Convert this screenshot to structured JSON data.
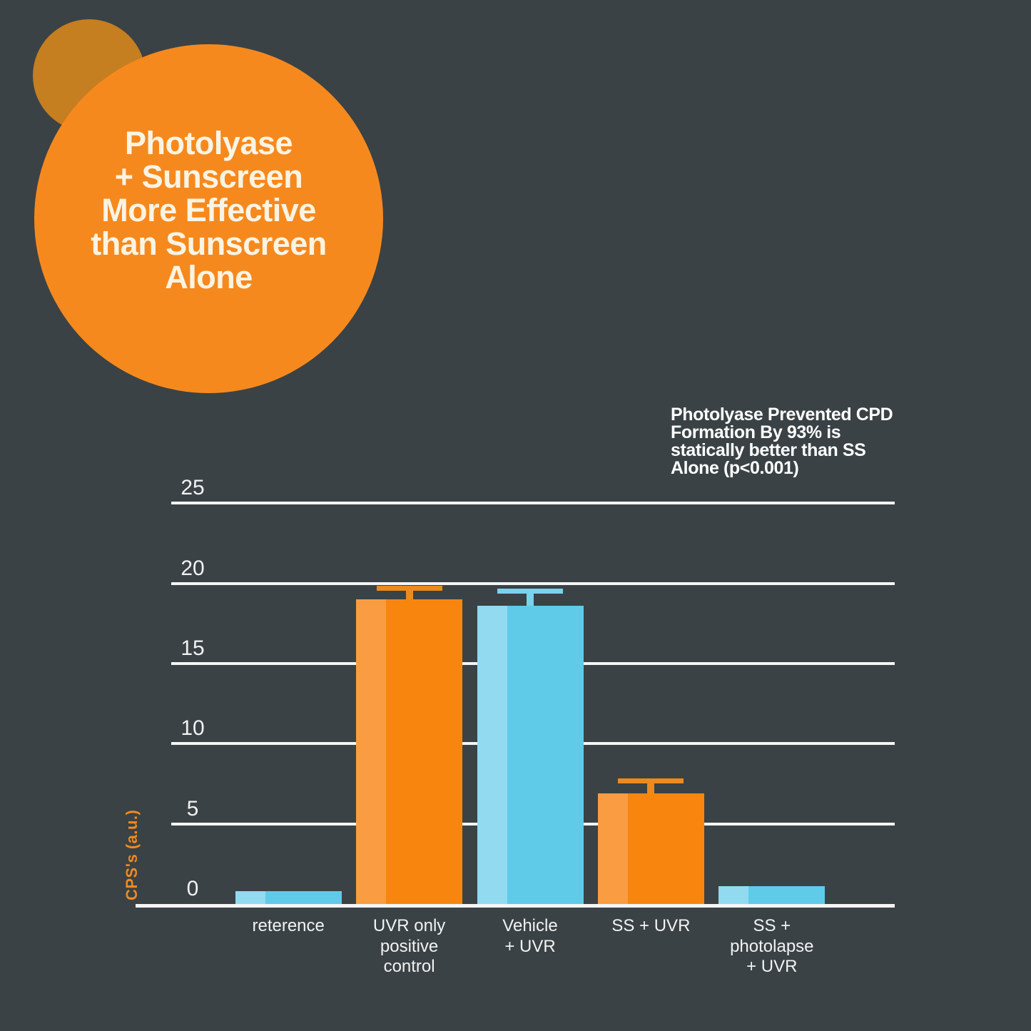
{
  "title_circle": {
    "text": "Photolyase\n+ Sunscreen\nMore Effective\nthan Sunscreen\nAlone"
  },
  "annotation": {
    "text": "Photolyase Prevented CPD\nFormation By 93% is\nstatically better than SS\nAlone (p<0.001)"
  },
  "colors": {
    "background": "#3A4245",
    "title_circle": "#F6891E",
    "decor_circle": "#C57E20",
    "title_text": "#FAF4E4",
    "grid": "#F5F5F5",
    "tick_text": "#F2F2F2",
    "annotation_text": "#FFFFFF",
    "y_axis_title": "#F18A1E",
    "bar_orange": "#F8860E",
    "bar_orange_light": "#FA9C42",
    "error_orange": "#ED8A1F",
    "bar_blue": "#5FCBE9",
    "bar_blue_light": "#92DAF0",
    "error_blue": "#79D3EC"
  },
  "chart_data": {
    "type": "bar",
    "categories": [
      "reterence",
      "UVR only\npositive\ncontrol",
      "Vehicle\n+ UVR",
      "SS + UVR",
      "SS +\nphotolapse\n+ UVR"
    ],
    "values": [
      0.8,
      19.0,
      18.6,
      6.9,
      1.1
    ],
    "errors_plus": [
      0,
      0.7,
      0.9,
      0.8,
      0
    ],
    "bar_palette": [
      "blue",
      "orange",
      "blue",
      "orange",
      "blue"
    ],
    "ylabel": "CPS's (a.u.)",
    "yticks": [
      25,
      20,
      15,
      10,
      5,
      0
    ],
    "ylim": [
      0,
      25
    ],
    "grid": true,
    "legend": false
  }
}
